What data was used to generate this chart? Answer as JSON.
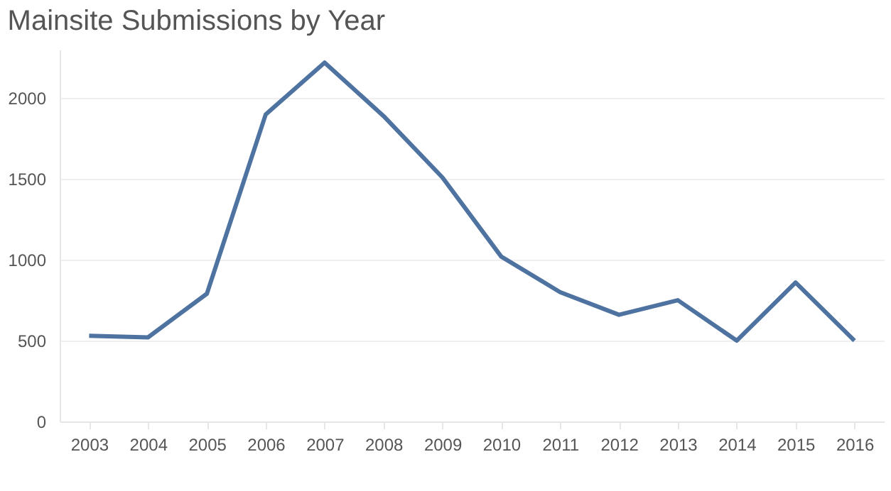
{
  "chart_data": {
    "type": "line",
    "title": "Mainsite Submissions by Year",
    "categories": [
      "2003",
      "2004",
      "2005",
      "2006",
      "2007",
      "2008",
      "2009",
      "2010",
      "2011",
      "2012",
      "2013",
      "2014",
      "2015",
      "2016"
    ],
    "series": [
      {
        "color": "#4e73a0",
        "values": [
          530,
          520,
          790,
          1900,
          2220,
          1890,
          1510,
          1020,
          800,
          660,
          750,
          500,
          860,
          500
        ]
      }
    ],
    "ylim": [
      0,
      2300
    ],
    "yticks": [
      0,
      500,
      1000,
      1500,
      2000
    ],
    "grid": "y",
    "marker": "none",
    "line_style": "solid"
  }
}
